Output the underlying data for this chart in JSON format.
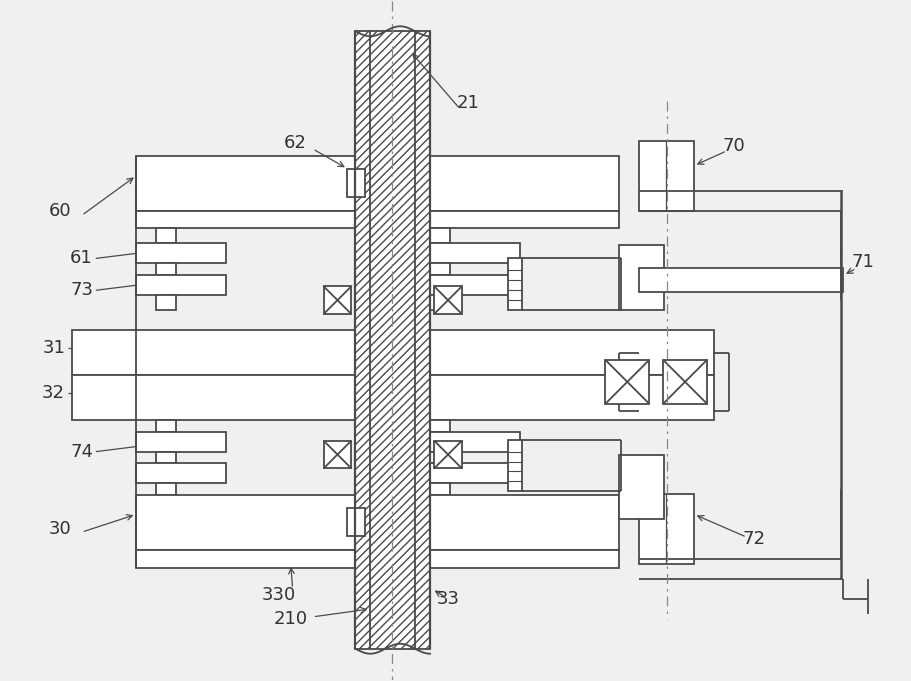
{
  "bg_color": "#f0f0f0",
  "lc": "#4a4a4a",
  "lw": 1.3,
  "fig_w": 9.12,
  "fig_h": 6.81
}
